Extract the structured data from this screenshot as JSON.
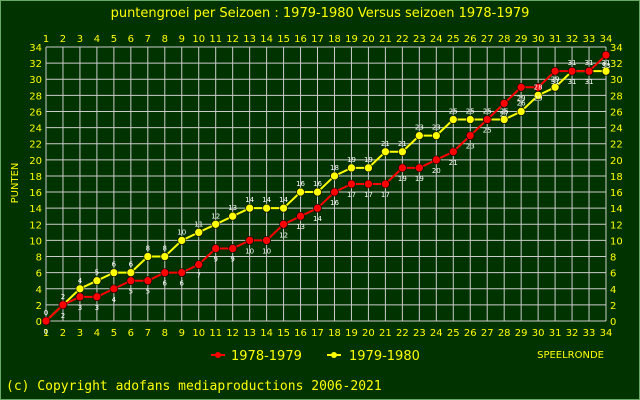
{
  "copyright": "(c) Copyright adofans mediaproductions 2006-2021",
  "colors": {
    "background": "#003300",
    "grid": "#cccccc",
    "text": "#ffff00",
    "data_label": "#ffffff"
  },
  "chart_data": {
    "type": "line",
    "title": "puntengroei per Seizoen : 1979-1980 Versus seizoen 1978-1979",
    "xlabel": "SPEELRONDE",
    "ylabel": "PUNTEN",
    "categories": [
      1,
      2,
      3,
      4,
      5,
      6,
      7,
      8,
      9,
      10,
      11,
      12,
      13,
      14,
      15,
      16,
      17,
      18,
      19,
      20,
      21,
      22,
      23,
      24,
      25,
      26,
      27,
      28,
      29,
      30,
      31,
      32,
      33,
      34
    ],
    "ylim": [
      0,
      34
    ],
    "yticks": [
      0,
      2,
      4,
      6,
      8,
      10,
      12,
      14,
      16,
      18,
      20,
      22,
      24,
      26,
      28,
      30,
      32,
      34
    ],
    "grid": true,
    "legend_position": "bottom",
    "series": [
      {
        "name": "1978-1979",
        "color": "#ff0000",
        "values": [
          0,
          2,
          3,
          3,
          4,
          5,
          5,
          6,
          6,
          7,
          9,
          9,
          10,
          10,
          12,
          13,
          14,
          16,
          17,
          17,
          17,
          19,
          19,
          20,
          21,
          23,
          25,
          27,
          29,
          29,
          31,
          31,
          31,
          33
        ]
      },
      {
        "name": "1979-1980",
        "color": "#ffff00",
        "values": [
          0,
          2,
          4,
          5,
          6,
          6,
          8,
          8,
          10,
          11,
          12,
          13,
          14,
          14,
          14,
          16,
          16,
          18,
          19,
          19,
          21,
          21,
          23,
          23,
          25,
          25,
          25,
          25,
          26,
          28,
          29,
          31,
          31,
          31
        ]
      }
    ]
  }
}
